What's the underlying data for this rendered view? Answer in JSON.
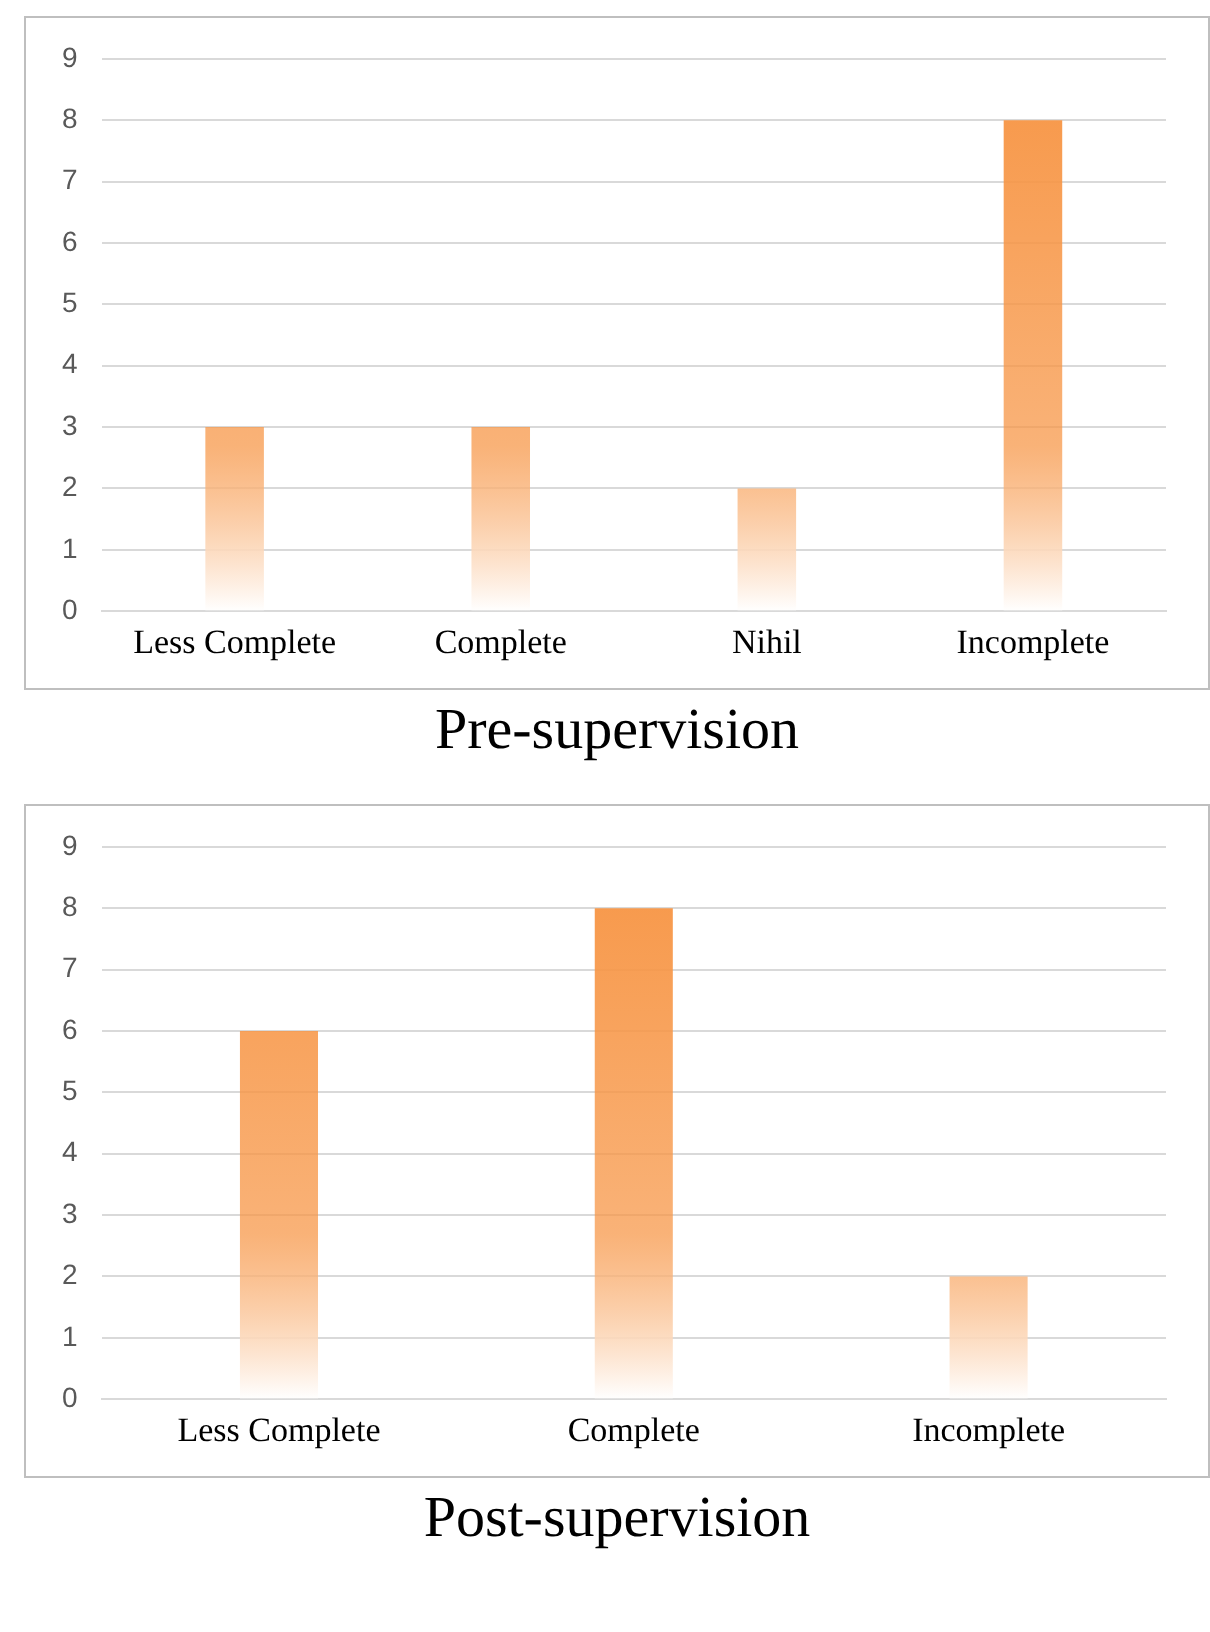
{
  "chart_data": [
    {
      "type": "bar",
      "title": "Pre-supervision",
      "categories": [
        "Less Complete",
        "Complete",
        "Nihil",
        "Incomplete"
      ],
      "values": [
        3,
        3,
        2,
        8
      ],
      "color": "#f79646",
      "ylim": [
        0,
        9
      ],
      "yticks": [
        0,
        1,
        2,
        3,
        4,
        5,
        6,
        7,
        8,
        9
      ],
      "grid": "y"
    },
    {
      "type": "bar",
      "title": "Post-supervision",
      "categories": [
        "Less Complete",
        "Complete",
        "Incomplete"
      ],
      "values": [
        6,
        8,
        2
      ],
      "color": "#f79646",
      "ylim": [
        0,
        9
      ],
      "yticks": [
        0,
        1,
        2,
        3,
        4,
        5,
        6,
        7,
        8,
        9
      ],
      "grid": "y"
    }
  ]
}
